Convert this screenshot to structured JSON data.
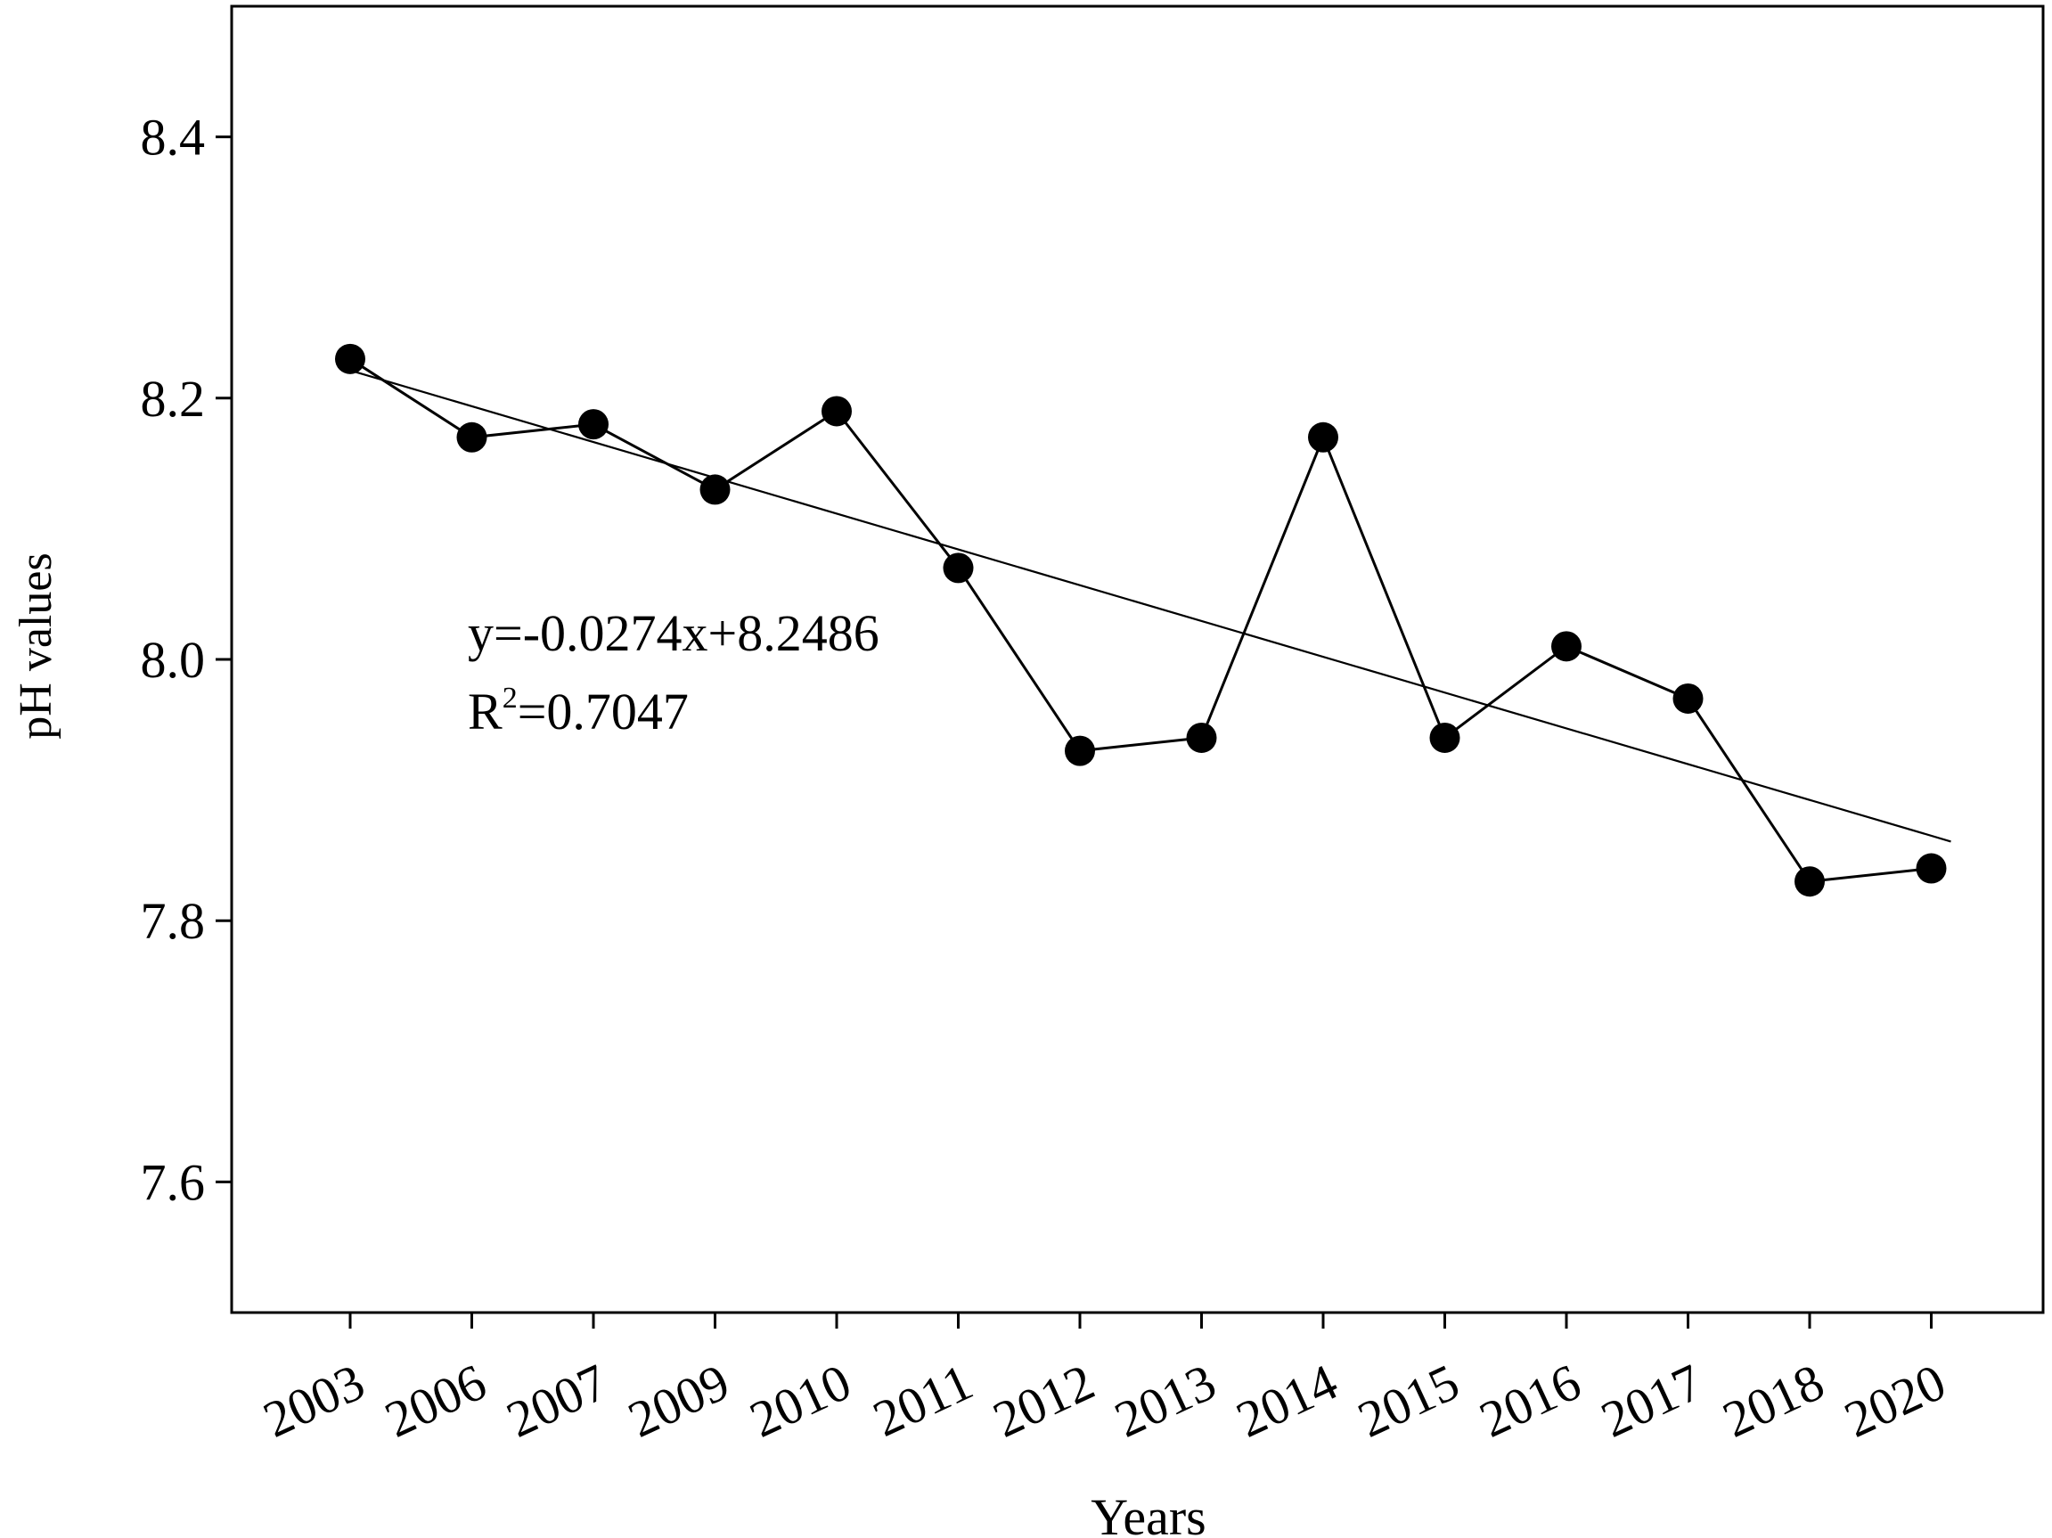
{
  "chart_data": {
    "type": "line",
    "title": "",
    "xlabel": "Years",
    "ylabel": "pH values",
    "categories": [
      "2003",
      "2006",
      "2007",
      "2009",
      "2010",
      "2011",
      "2012",
      "2013",
      "2014",
      "2015",
      "2016",
      "2017",
      "2018",
      "2020"
    ],
    "series": [
      {
        "values": [
          8.23,
          8.17,
          8.18,
          8.13,
          8.19,
          8.07,
          7.93,
          7.94,
          8.17,
          7.94,
          8.01,
          7.97,
          7.83,
          7.84
        ]
      }
    ],
    "trendline": {
      "slope": -0.0274,
      "intercept": 8.2486,
      "equation_text": "y=-0.0274x+8.2486",
      "r2_label": "R",
      "r2_superscript": "2",
      "r2_value": "=0.7047"
    },
    "ylim": [
      7.5,
      8.5
    ],
    "yticks": [
      "7.6",
      "7.8",
      "8.0",
      "8.2",
      "8.4"
    ],
    "grid": false,
    "legend": "none",
    "colors": {
      "line": "#000000",
      "marker": "#000000",
      "trend": "#000000"
    }
  }
}
